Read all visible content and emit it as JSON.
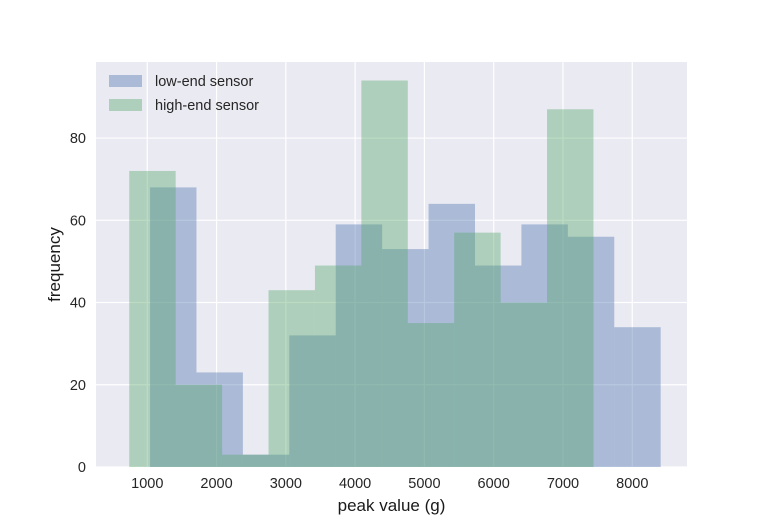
{
  "chart_data": {
    "type": "bar",
    "xlabel": "peak value (g)",
    "ylabel": "frequency",
    "xlim": [
      260,
      8790
    ],
    "ylim": [
      0,
      98.5
    ],
    "xticks": [
      1000,
      2000,
      3000,
      4000,
      5000,
      6000,
      7000,
      8000
    ],
    "yticks": [
      0,
      20,
      40,
      60,
      80
    ],
    "grid": true,
    "legend_position": "top-left",
    "series": [
      {
        "name": "low-end sensor",
        "color": "#4c72b0",
        "bins": [
          {
            "x0": 1040,
            "x1": 1710,
            "value": 68
          },
          {
            "x0": 1710,
            "x1": 2380,
            "value": 23
          },
          {
            "x0": 2380,
            "x1": 3050,
            "value": 3
          },
          {
            "x0": 3050,
            "x1": 3720,
            "value": 32
          },
          {
            "x0": 3720,
            "x1": 4390,
            "value": 59
          },
          {
            "x0": 4390,
            "x1": 5060,
            "value": 53
          },
          {
            "x0": 5060,
            "x1": 5730,
            "value": 64
          },
          {
            "x0": 5730,
            "x1": 6400,
            "value": 49
          },
          {
            "x0": 6400,
            "x1": 7070,
            "value": 59
          },
          {
            "x0": 7070,
            "x1": 7740,
            "value": 56
          },
          {
            "x0": 7740,
            "x1": 8410,
            "value": 34
          }
        ]
      },
      {
        "name": "high-end sensor",
        "color": "#55a868",
        "bins": [
          {
            "x0": 740,
            "x1": 1410,
            "value": 72
          },
          {
            "x0": 1410,
            "x1": 2080,
            "value": 20
          },
          {
            "x0": 2080,
            "x1": 2750,
            "value": 3
          },
          {
            "x0": 2750,
            "x1": 3420,
            "value": 43
          },
          {
            "x0": 3420,
            "x1": 4090,
            "value": 49
          },
          {
            "x0": 4090,
            "x1": 4760,
            "value": 94
          },
          {
            "x0": 4760,
            "x1": 5430,
            "value": 35
          },
          {
            "x0": 5430,
            "x1": 6100,
            "value": 57
          },
          {
            "x0": 6100,
            "x1": 6770,
            "value": 40
          },
          {
            "x0": 6770,
            "x1": 7440,
            "value": 87
          }
        ]
      }
    ]
  }
}
